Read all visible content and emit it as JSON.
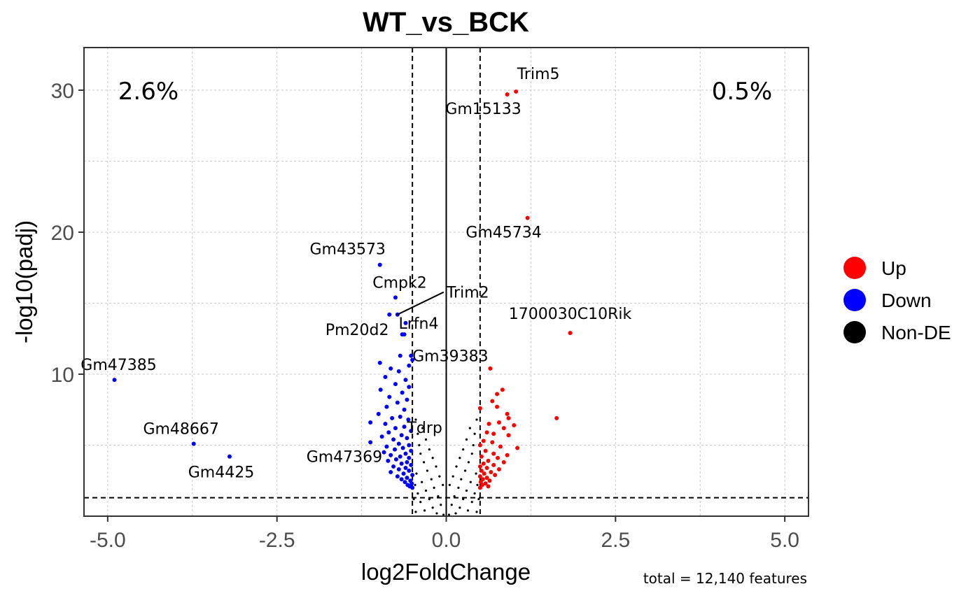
{
  "chart_data": {
    "type": "scatter",
    "title": "WT_vs_BCK",
    "xlabel": "log2FoldChange",
    "ylabel": "-log10(padj)",
    "xlim": [
      -5.35,
      5.35
    ],
    "ylim": [
      0,
      33
    ],
    "x_ticks": [
      -5.0,
      -2.5,
      0.0,
      2.5,
      5.0
    ],
    "x_tick_labels": [
      "-5.0",
      "-2.5",
      "0.0",
      "2.5",
      "5.0"
    ],
    "y_ticks": [
      10,
      20,
      30
    ],
    "y_tick_labels": [
      "10",
      "20",
      "30"
    ],
    "fc_thresholds": [
      -0.5,
      0.5
    ],
    "padj_threshold": 1.3,
    "grid": true,
    "legend_position": "right",
    "legend": [
      {
        "name": "Up",
        "color": "#FF0000"
      },
      {
        "name": "Down",
        "color": "#0000FF"
      },
      {
        "name": "Non-DE",
        "color": "#000000"
      }
    ],
    "percent_down": "2.6%",
    "percent_up": "0.5%",
    "caption": "total = 12,140 features",
    "labeled_genes": [
      {
        "gene": "Trim5",
        "x": 1.03,
        "y": 29.9,
        "group": "Up"
      },
      {
        "gene": "Gm15133",
        "x": 0.9,
        "y": 29.7,
        "group": "Up"
      },
      {
        "gene": "Gm45734",
        "x": 1.2,
        "y": 21.0,
        "group": "Up"
      },
      {
        "gene": "1700030C10Rik",
        "x": 1.83,
        "y": 12.9,
        "group": "Up"
      },
      {
        "gene": "Gm43573",
        "x": -0.98,
        "y": 17.7,
        "group": "Down"
      },
      {
        "gene": "Cmpk2",
        "x": -0.75,
        "y": 15.4,
        "group": "Down"
      },
      {
        "gene": "Trim2",
        "x": -0.72,
        "y": 14.2,
        "group": "Down"
      },
      {
        "gene": "Lrfn4",
        "x": -0.6,
        "y": 13.6,
        "group": "Down"
      },
      {
        "gene": "Pm20d2",
        "x": -0.62,
        "y": 12.8,
        "group": "Down"
      },
      {
        "gene": "Gm39383",
        "x": -0.5,
        "y": 11.0,
        "group": "Down"
      },
      {
        "gene": "Gm47385",
        "x": -4.9,
        "y": 9.6,
        "group": "Down"
      },
      {
        "gene": "Tdrp",
        "x": -0.6,
        "y": 6.7,
        "group": "Down"
      },
      {
        "gene": "Gm48667",
        "x": -3.73,
        "y": 5.1,
        "group": "Down"
      },
      {
        "gene": "Gm4425",
        "x": -3.2,
        "y": 4.2,
        "group": "Down"
      },
      {
        "gene": "Gm47369",
        "x": -0.82,
        "y": 4.3,
        "group": "Down"
      }
    ],
    "series": [
      {
        "name": "Up",
        "color": "#FF0000",
        "points": [
          [
            1.03,
            29.9
          ],
          [
            0.9,
            29.7
          ],
          [
            1.2,
            21.0
          ],
          [
            1.83,
            12.9
          ],
          [
            1.63,
            6.9
          ],
          [
            0.65,
            10.4
          ],
          [
            0.83,
            8.9
          ],
          [
            0.75,
            8.6
          ],
          [
            0.68,
            8.1
          ],
          [
            0.5,
            7.6
          ],
          [
            0.75,
            7.7
          ],
          [
            0.9,
            7.2
          ],
          [
            0.92,
            6.9
          ],
          [
            0.63,
            6.5
          ],
          [
            0.78,
            6.6
          ],
          [
            1.0,
            6.4
          ],
          [
            0.85,
            6.2
          ],
          [
            0.6,
            5.9
          ],
          [
            0.7,
            5.8
          ],
          [
            0.92,
            5.7
          ],
          [
            0.55,
            5.3
          ],
          [
            0.68,
            5.2
          ],
          [
            0.5,
            5.0
          ],
          [
            0.8,
            4.9
          ],
          [
            1.05,
            4.8
          ],
          [
            0.58,
            4.6
          ],
          [
            0.7,
            4.4
          ],
          [
            0.9,
            4.3
          ],
          [
            0.52,
            4.2
          ],
          [
            0.76,
            4.1
          ],
          [
            0.62,
            3.9
          ],
          [
            0.85,
            3.8
          ],
          [
            0.55,
            3.7
          ],
          [
            0.7,
            3.6
          ],
          [
            0.5,
            3.5
          ],
          [
            0.6,
            3.4
          ],
          [
            0.78,
            3.3
          ],
          [
            0.52,
            3.2
          ],
          [
            0.66,
            3.1
          ],
          [
            0.56,
            3.0
          ],
          [
            0.72,
            2.9
          ],
          [
            0.5,
            2.8
          ],
          [
            0.6,
            2.7
          ],
          [
            0.54,
            2.6
          ],
          [
            0.64,
            2.5
          ],
          [
            0.51,
            2.4
          ],
          [
            0.58,
            2.3
          ],
          [
            0.53,
            2.2
          ],
          [
            0.62,
            2.1
          ],
          [
            0.5,
            2.0
          ]
        ]
      },
      {
        "name": "Down",
        "color": "#0000FF",
        "points": [
          [
            -4.9,
            9.6
          ],
          [
            -3.73,
            5.1
          ],
          [
            -3.2,
            4.2
          ],
          [
            -0.98,
            17.7
          ],
          [
            -0.75,
            15.4
          ],
          [
            -0.72,
            14.2
          ],
          [
            -0.84,
            14.2
          ],
          [
            -0.6,
            13.6
          ],
          [
            -0.62,
            12.8
          ],
          [
            -0.65,
            12.8
          ],
          [
            -0.5,
            11.0
          ],
          [
            -0.52,
            11.3
          ],
          [
            -0.68,
            11.3
          ],
          [
            -0.98,
            10.8
          ],
          [
            -0.55,
            10.6
          ],
          [
            -0.82,
            10.4
          ],
          [
            -0.7,
            10.2
          ],
          [
            -0.9,
            9.8
          ],
          [
            -0.6,
            9.6
          ],
          [
            -0.75,
            9.3
          ],
          [
            -0.55,
            9.1
          ],
          [
            -0.97,
            8.9
          ],
          [
            -0.65,
            8.7
          ],
          [
            -0.84,
            8.4
          ],
          [
            -0.58,
            8.2
          ],
          [
            -0.72,
            8.0
          ],
          [
            -0.88,
            7.7
          ],
          [
            -0.62,
            7.5
          ],
          [
            -1.0,
            7.2
          ],
          [
            -0.68,
            7.0
          ],
          [
            -0.8,
            6.9
          ],
          [
            -0.56,
            6.8
          ],
          [
            -1.12,
            6.6
          ],
          [
            -0.9,
            6.5
          ],
          [
            -0.62,
            6.3
          ],
          [
            -0.75,
            6.2
          ],
          [
            -0.52,
            6.0
          ],
          [
            -0.85,
            5.9
          ],
          [
            -0.66,
            5.7
          ],
          [
            -0.95,
            5.6
          ],
          [
            -0.58,
            5.5
          ],
          [
            -0.78,
            5.4
          ],
          [
            -1.12,
            5.2
          ],
          [
            -0.7,
            5.1
          ],
          [
            -0.55,
            5.0
          ],
          [
            -0.88,
            4.9
          ],
          [
            -0.64,
            4.8
          ],
          [
            -0.76,
            4.7
          ],
          [
            -0.52,
            4.6
          ],
          [
            -0.92,
            4.5
          ],
          [
            -0.6,
            4.4
          ],
          [
            -0.82,
            4.3
          ],
          [
            -0.68,
            4.2
          ],
          [
            -0.55,
            4.1
          ],
          [
            -0.74,
            4.0
          ],
          [
            -0.86,
            3.9
          ],
          [
            -0.58,
            3.8
          ],
          [
            -0.66,
            3.7
          ],
          [
            -0.52,
            3.6
          ],
          [
            -0.78,
            3.5
          ],
          [
            -0.6,
            3.4
          ],
          [
            -0.7,
            3.3
          ],
          [
            -0.55,
            3.2
          ],
          [
            -0.82,
            3.1
          ],
          [
            -0.63,
            3.0
          ],
          [
            -0.5,
            2.9
          ],
          [
            -0.72,
            2.8
          ],
          [
            -0.58,
            2.7
          ],
          [
            -0.66,
            2.6
          ],
          [
            -0.53,
            2.5
          ],
          [
            -0.61,
            2.4
          ],
          [
            -0.51,
            2.3
          ],
          [
            -0.57,
            2.2
          ],
          [
            -0.54,
            2.1
          ],
          [
            -0.5,
            2.0
          ]
        ]
      },
      {
        "name": "Non-DE",
        "color": "#000000",
        "points": [
          [
            -0.45,
            6.8
          ],
          [
            -0.35,
            6.2
          ],
          [
            -0.42,
            5.8
          ],
          [
            -0.3,
            5.4
          ],
          [
            -0.4,
            5.0
          ],
          [
            -0.25,
            4.7
          ],
          [
            -0.38,
            4.4
          ],
          [
            -0.2,
            4.1
          ],
          [
            -0.33,
            3.8
          ],
          [
            -0.15,
            3.5
          ],
          [
            -0.28,
            3.2
          ],
          [
            -0.44,
            3.0
          ],
          [
            -0.1,
            2.8
          ],
          [
            -0.22,
            2.6
          ],
          [
            -0.36,
            2.4
          ],
          [
            -0.05,
            2.2
          ],
          [
            -0.18,
            2.0
          ],
          [
            -0.3,
            1.8
          ],
          [
            -0.42,
            1.6
          ],
          [
            -0.12,
            1.4
          ],
          [
            -0.25,
            1.2
          ],
          [
            -0.38,
            1.0
          ],
          [
            -0.08,
            0.8
          ],
          [
            -0.2,
            0.6
          ],
          [
            -0.32,
            0.4
          ],
          [
            -0.45,
            0.3
          ],
          [
            -0.14,
            0.2
          ],
          [
            -0.04,
            0.1
          ],
          [
            0.04,
            0.1
          ],
          [
            0.14,
            0.2
          ],
          [
            0.45,
            0.3
          ],
          [
            0.32,
            0.4
          ],
          [
            0.2,
            0.6
          ],
          [
            0.08,
            0.8
          ],
          [
            0.38,
            1.0
          ],
          [
            0.25,
            1.2
          ],
          [
            0.12,
            1.4
          ],
          [
            0.42,
            1.6
          ],
          [
            0.3,
            1.8
          ],
          [
            0.18,
            2.0
          ],
          [
            0.05,
            2.2
          ],
          [
            0.36,
            2.4
          ],
          [
            0.22,
            2.6
          ],
          [
            0.1,
            2.8
          ],
          [
            0.44,
            3.0
          ],
          [
            0.28,
            3.2
          ],
          [
            0.15,
            3.5
          ],
          [
            0.33,
            3.8
          ],
          [
            0.2,
            4.1
          ],
          [
            0.38,
            4.4
          ],
          [
            0.25,
            4.7
          ],
          [
            0.4,
            5.0
          ],
          [
            0.3,
            5.4
          ],
          [
            0.42,
            5.8
          ],
          [
            0.35,
            6.2
          ],
          [
            0.45,
            6.8
          ],
          [
            -0.48,
            1.2
          ],
          [
            0.48,
            1.2
          ],
          [
            -0.46,
            2.2
          ],
          [
            0.46,
            2.2
          ]
        ]
      }
    ]
  }
}
